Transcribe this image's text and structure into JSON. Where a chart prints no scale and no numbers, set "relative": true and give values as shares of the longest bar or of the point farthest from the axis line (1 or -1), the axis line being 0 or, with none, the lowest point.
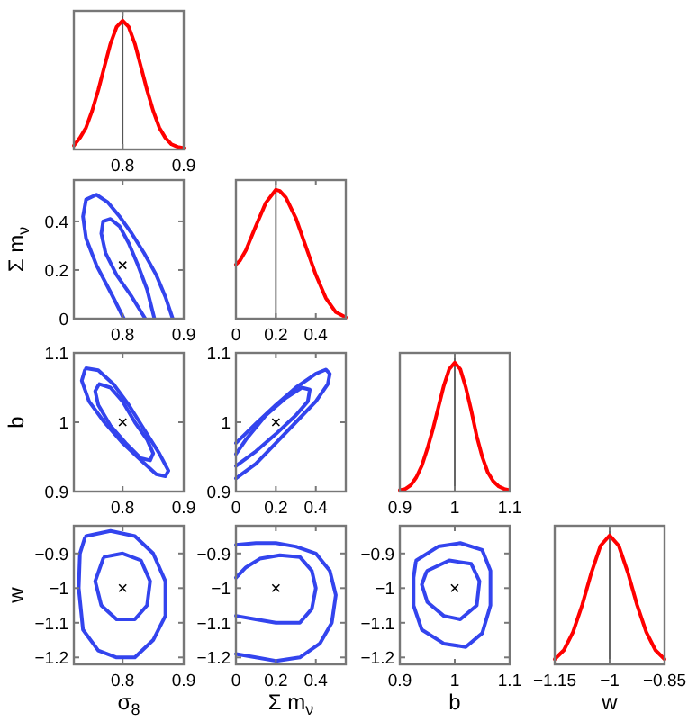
{
  "chart_data": [
    {
      "type": "line",
      "relative": true,
      "tick_labels": "x",
      "xlim": [
        0.72,
        0.9
      ],
      "xticks": [
        0.8,
        0.9
      ],
      "ref_lines": [
        {
          "axis": "x",
          "value": 0.8,
          "color": "#555555"
        }
      ],
      "x": [
        0.72,
        0.73,
        0.74,
        0.75,
        0.76,
        0.77,
        0.78,
        0.79,
        0.8,
        0.81,
        0.82,
        0.83,
        0.84,
        0.85,
        0.86,
        0.87,
        0.88,
        0.89,
        0.9
      ],
      "values": [
        0.03,
        0.09,
        0.17,
        0.3,
        0.46,
        0.64,
        0.82,
        0.95,
        1,
        0.95,
        0.82,
        0.64,
        0.46,
        0.3,
        0.17,
        0.09,
        0.04,
        0.02,
        0.01
      ],
      "color": "#ff0000"
    },
    {
      "type": "line",
      "ylabel": "Σ m$_{ν}$",
      "xlim": [
        0.72,
        0.9
      ],
      "xticks": [
        0.8,
        0.9
      ],
      "ylim": [
        0,
        0.57
      ],
      "yticks": [
        0,
        0.2,
        0.4
      ],
      "series": [
        {
          "color": "#3344ee",
          "x": [
            0.802,
            0.782,
            0.757,
            0.74,
            0.735,
            0.74,
            0.757,
            0.775,
            0.795,
            0.815,
            0.835,
            0.855,
            0.87,
            0.882
          ],
          "values": [
            0,
            0.1,
            0.22,
            0.33,
            0.42,
            0.49,
            0.51,
            0.48,
            0.42,
            0.35,
            0.27,
            0.18,
            0.09,
            0
          ]
        },
        {
          "color": "#3344ee",
          "x": [
            0.837,
            0.815,
            0.79,
            0.772,
            0.765,
            0.768,
            0.78,
            0.795,
            0.81,
            0.825,
            0.84,
            0.852
          ],
          "values": [
            0,
            0.09,
            0.18,
            0.27,
            0.35,
            0.4,
            0.41,
            0.38,
            0.31,
            0.22,
            0.12,
            0
          ]
        },
        {
          "type": "scatter",
          "marker": "cross",
          "color": "#000000",
          "x": [
            0.8
          ],
          "values": [
            0.22
          ]
        }
      ]
    },
    {
      "type": "line",
      "relative": true,
      "tick_labels": "x",
      "xlim": [
        0,
        0.55
      ],
      "xticks": [
        0,
        0.2,
        0.4
      ],
      "ref_lines": [
        {
          "axis": "x",
          "value": 0.2,
          "color": "#555555"
        }
      ],
      "x": [
        0,
        0.02,
        0.05,
        0.1,
        0.15,
        0.2,
        0.22,
        0.25,
        0.3,
        0.35,
        0.4,
        0.45,
        0.5,
        0.55
      ],
      "values": [
        0.42,
        0.45,
        0.53,
        0.72,
        0.9,
        1,
        0.99,
        0.94,
        0.78,
        0.56,
        0.34,
        0.16,
        0.05,
        0.01
      ],
      "color": "#ff0000"
    },
    {
      "type": "line",
      "ylabel": "b",
      "xlim": [
        0.72,
        0.9
      ],
      "xticks": [
        0.8,
        0.9
      ],
      "ylim": [
        0.9,
        1.1
      ],
      "yticks": [
        0.9,
        1,
        1.1
      ],
      "series": [
        {
          "color": "#3344ee",
          "x": [
            0.74,
            0.76,
            0.785,
            0.81,
            0.835,
            0.86,
            0.875,
            0.87,
            0.855,
            0.83,
            0.8,
            0.77,
            0.745,
            0.733,
            0.738
          ],
          "values": [
            1.078,
            1.075,
            1.055,
            1.025,
            0.99,
            0.955,
            0.93,
            0.922,
            0.925,
            0.945,
            0.97,
            1,
            1.03,
            1.06,
            1.075
          ]
        },
        {
          "color": "#3344ee",
          "x": [
            0.762,
            0.78,
            0.8,
            0.82,
            0.84,
            0.85,
            0.845,
            0.83,
            0.805,
            0.78,
            0.76,
            0.755,
            0.76
          ],
          "values": [
            1.055,
            1.05,
            1.03,
            1,
            0.975,
            0.955,
            0.945,
            0.948,
            0.97,
            0.995,
            1.025,
            1.045,
            1.053
          ]
        },
        {
          "type": "scatter",
          "marker": "cross",
          "color": "#000000",
          "x": [
            0.8
          ],
          "values": [
            1
          ]
        }
      ]
    },
    {
      "type": "line",
      "xlim": [
        0,
        0.55
      ],
      "xticks": [
        0,
        0.2,
        0.4
      ],
      "ylim": [
        0.9,
        1.1
      ],
      "yticks": [
        0.9,
        1,
        1.1
      ],
      "series": [
        {
          "color": "#3344ee",
          "x": [
            0,
            0.1,
            0.2,
            0.3,
            0.4,
            0.46,
            0.47,
            0.45,
            0.4,
            0.3,
            0.2,
            0.1,
            0
          ],
          "values": [
            0.919,
            0.94,
            0.97,
            1,
            1.03,
            1.055,
            1.07,
            1.076,
            1.07,
            1.05,
            1.025,
            0.998,
            0.97
          ]
        },
        {
          "color": "#3344ee",
          "x": [
            0,
            0.1,
            0.2,
            0.3,
            0.36,
            0.37,
            0.33,
            0.25,
            0.15,
            0.05,
            0
          ],
          "values": [
            0.937,
            0.958,
            0.983,
            1.01,
            1.03,
            1.047,
            1.05,
            1.035,
            1.01,
            0.975,
            0.954
          ]
        },
        {
          "type": "scatter",
          "marker": "cross",
          "color": "#000000",
          "x": [
            0.2
          ],
          "values": [
            1
          ]
        }
      ]
    },
    {
      "type": "line",
      "relative": true,
      "tick_labels": "x",
      "xlim": [
        0.9,
        1.1
      ],
      "xticks": [
        0.9,
        1,
        1.1
      ],
      "ref_lines": [
        {
          "axis": "x",
          "value": 1,
          "color": "#555555"
        }
      ],
      "x": [
        0.9,
        0.91,
        0.92,
        0.93,
        0.94,
        0.95,
        0.96,
        0.97,
        0.98,
        0.99,
        1,
        1.01,
        1.02,
        1.03,
        1.04,
        1.05,
        1.06,
        1.07,
        1.08,
        1.09,
        1.1
      ],
      "values": [
        0.01,
        0.02,
        0.05,
        0.11,
        0.2,
        0.33,
        0.48,
        0.65,
        0.82,
        0.95,
        1,
        0.95,
        0.81,
        0.63,
        0.43,
        0.27,
        0.15,
        0.08,
        0.04,
        0.02,
        0.01
      ],
      "color": "#ff0000"
    },
    {
      "type": "line",
      "ylabel": "w",
      "xlabel": "σ$_{8}$",
      "xlim": [
        0.72,
        0.9
      ],
      "xticks": [
        0.8,
        0.9
      ],
      "ylim": [
        -1.22,
        -0.82
      ],
      "yticks": [
        {
          "value": -1.2,
          "label": "−1.2"
        },
        {
          "value": -1.1,
          "label": "−1.1"
        },
        {
          "value": -1,
          "label": "−1"
        },
        {
          "value": -0.9,
          "label": "−0.9"
        }
      ],
      "series": [
        {
          "color": "#3344ee",
          "x": [
            0.74,
            0.78,
            0.82,
            0.85,
            0.87,
            0.87,
            0.85,
            0.82,
            0.79,
            0.76,
            0.735,
            0.728,
            0.73,
            0.738
          ],
          "values": [
            -0.85,
            -0.835,
            -0.85,
            -0.9,
            -0.98,
            -1.08,
            -1.15,
            -1.2,
            -1.2,
            -1.18,
            -1.12,
            -1,
            -0.9,
            -0.855
          ]
        },
        {
          "color": "#3344ee",
          "x": [
            0.77,
            0.8,
            0.83,
            0.845,
            0.84,
            0.82,
            0.79,
            0.765,
            0.755,
            0.768
          ],
          "values": [
            -0.91,
            -0.9,
            -0.92,
            -0.98,
            -1.05,
            -1.09,
            -1.09,
            -1.05,
            -0.98,
            -0.915
          ]
        },
        {
          "type": "scatter",
          "marker": "cross",
          "color": "#000000",
          "x": [
            0.8
          ],
          "values": [
            -1
          ]
        }
      ]
    },
    {
      "type": "line",
      "xlabel": "Σ m$_{ν}$",
      "xlim": [
        0,
        0.55
      ],
      "xticks": [
        0,
        0.2,
        0.4
      ],
      "ylim": [
        -1.22,
        -0.82
      ],
      "yticks": [
        {
          "value": -1.2,
          "label": "−1.2"
        },
        {
          "value": -1.1,
          "label": "−1.1"
        },
        {
          "value": -1,
          "label": "−1"
        },
        {
          "value": -0.9,
          "label": "−0.9"
        }
      ],
      "series": [
        {
          "color": "#3344ee",
          "x": [
            0,
            0.1,
            0.2,
            0.3,
            0.4,
            0.47,
            0.5,
            0.48,
            0.42,
            0.32,
            0.2,
            0.1,
            0
          ],
          "values": [
            -0.875,
            -0.87,
            -0.87,
            -0.88,
            -0.9,
            -0.95,
            -1.02,
            -1.1,
            -1.16,
            -1.2,
            -1.21,
            -1.2,
            -1.19
          ]
        },
        {
          "color": "#3344ee",
          "x": [
            0,
            0.05,
            0.12,
            0.22,
            0.32,
            0.38,
            0.4,
            0.38,
            0.32,
            0.2,
            0.1,
            0
          ],
          "values": [
            -0.97,
            -0.94,
            -0.915,
            -0.905,
            -0.91,
            -0.95,
            -1,
            -1.06,
            -1.1,
            -1.1,
            -1.09,
            -1.08
          ]
        },
        {
          "type": "scatter",
          "marker": "cross",
          "color": "#000000",
          "x": [
            0.2
          ],
          "values": [
            -1
          ]
        }
      ]
    },
    {
      "type": "line",
      "xlabel": "b",
      "xlim": [
        0.9,
        1.1
      ],
      "xticks": [
        0.9,
        1,
        1.1
      ],
      "ylim": [
        -1.22,
        -0.82
      ],
      "yticks": [
        {
          "value": -1.2,
          "label": "−1.2"
        },
        {
          "value": -1.1,
          "label": "−1.1"
        },
        {
          "value": -1,
          "label": "−1"
        },
        {
          "value": -0.9,
          "label": "−0.9"
        }
      ],
      "series": [
        {
          "color": "#3344ee",
          "x": [
            0.93,
            0.97,
            1.01,
            1.05,
            1.065,
            1.065,
            1.05,
            1.02,
            0.98,
            0.94,
            0.925,
            0.925,
            0.929
          ],
          "values": [
            -0.92,
            -0.88,
            -0.87,
            -0.89,
            -0.95,
            -1.05,
            -1.13,
            -1.17,
            -1.16,
            -1.12,
            -1.05,
            -0.97,
            -0.925
          ]
        },
        {
          "color": "#3344ee",
          "x": [
            0.95,
            0.99,
            1.03,
            1.045,
            1.04,
            1.01,
            0.98,
            0.95,
            0.94,
            0.948
          ],
          "values": [
            -0.95,
            -0.92,
            -0.93,
            -0.98,
            -1.05,
            -1.09,
            -1.08,
            -1.04,
            -0.99,
            -0.955
          ]
        },
        {
          "type": "scatter",
          "marker": "cross",
          "color": "#000000",
          "x": [
            1
          ],
          "values": [
            -1
          ]
        }
      ]
    },
    {
      "type": "line",
      "relative": true,
      "tick_labels": "x",
      "xlabel": "w",
      "xlim": [
        -1.15,
        -0.85
      ],
      "xticks": [
        {
          "value": -1.15,
          "label": "−1.15"
        },
        {
          "value": -1,
          "label": "−1"
        },
        {
          "value": -0.85,
          "label": "−0.85"
        }
      ],
      "ref_lines": [
        {
          "axis": "x",
          "value": -1,
          "color": "#555555"
        }
      ],
      "x": [
        -1.15,
        -1.125,
        -1.1,
        -1.075,
        -1.05,
        -1.025,
        -1,
        -0.975,
        -0.95,
        -0.925,
        -0.9,
        -0.875,
        -0.85
      ],
      "values": [
        0.04,
        0.11,
        0.25,
        0.46,
        0.71,
        0.92,
        1,
        0.92,
        0.71,
        0.46,
        0.25,
        0.11,
        0.04
      ],
      "color": "#ff0000"
    }
  ]
}
